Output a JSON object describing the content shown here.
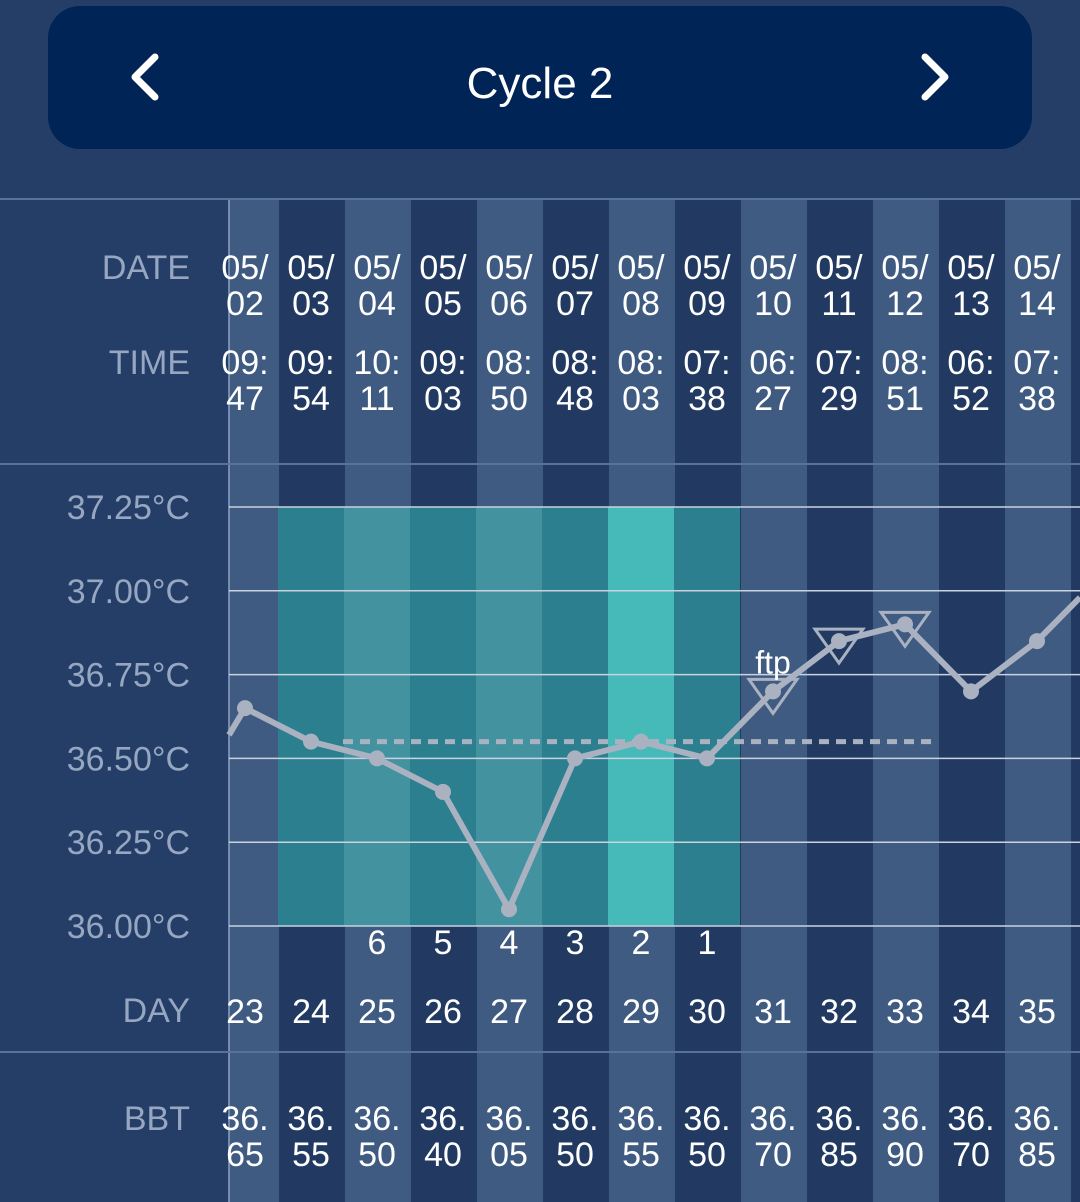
{
  "header": {
    "title": "Cycle 2",
    "prev_icon": "chevron-left-icon",
    "next_icon": "chevron-right-icon"
  },
  "rows": {
    "date_label": "DATE",
    "time_label": "TIME",
    "day_label": "DAY",
    "bbt_label": "BBT"
  },
  "colors": {
    "background": "#243e67",
    "header": "#012456",
    "col_light": "#3f5b81",
    "col_dark": "#223a62",
    "fertile_dark": "#2c7f8e",
    "fertile_light": "#43929f",
    "fertile_peak": "#46bab8",
    "line": "#aab2c2",
    "coverline": "#aab2c2",
    "marker": "#aab2c2"
  },
  "chart_data": {
    "type": "line",
    "ylim": [
      36.0,
      37.25
    ],
    "yticks": [
      "37.25°C",
      "37.00°C",
      "36.75°C",
      "36.50°C",
      "36.25°C",
      "36.00°C"
    ],
    "ytick_values": [
      37.25,
      37.0,
      36.75,
      36.5,
      36.25,
      36.0
    ],
    "columns": [
      {
        "date": [
          "05/",
          "02"
        ],
        "time": [
          "09:",
          "47"
        ],
        "day": "23",
        "bbt": [
          "36.",
          "65"
        ],
        "value": 36.65,
        "count": "",
        "band": "",
        "marker": false
      },
      {
        "date": [
          "05/",
          "03"
        ],
        "time": [
          "09:",
          "54"
        ],
        "day": "24",
        "bbt": [
          "36.",
          "55"
        ],
        "value": 36.55,
        "count": "",
        "band": "dark",
        "marker": false
      },
      {
        "date": [
          "05/",
          "04"
        ],
        "time": [
          "10:",
          "11"
        ],
        "day": "25",
        "bbt": [
          "36.",
          "50"
        ],
        "value": 36.5,
        "count": "6",
        "band": "light",
        "marker": false
      },
      {
        "date": [
          "05/",
          "05"
        ],
        "time": [
          "09:",
          "03"
        ],
        "day": "26",
        "bbt": [
          "36.",
          "40"
        ],
        "value": 36.4,
        "count": "5",
        "band": "dark",
        "marker": false
      },
      {
        "date": [
          "05/",
          "06"
        ],
        "time": [
          "08:",
          "50"
        ],
        "day": "27",
        "bbt": [
          "36.",
          "05"
        ],
        "value": 36.05,
        "count": "4",
        "band": "light",
        "marker": false
      },
      {
        "date": [
          "05/",
          "07"
        ],
        "time": [
          "08:",
          "48"
        ],
        "day": "28",
        "bbt": [
          "36.",
          "50"
        ],
        "value": 36.5,
        "count": "3",
        "band": "dark",
        "marker": false
      },
      {
        "date": [
          "05/",
          "08"
        ],
        "time": [
          "08:",
          "03"
        ],
        "day": "29",
        "bbt": [
          "36.",
          "55"
        ],
        "value": 36.55,
        "count": "2",
        "band": "peak",
        "marker": false
      },
      {
        "date": [
          "05/",
          "09"
        ],
        "time": [
          "07:",
          "38"
        ],
        "day": "30",
        "bbt": [
          "36.",
          "50"
        ],
        "value": 36.5,
        "count": "1",
        "band": "dark",
        "marker": false
      },
      {
        "date": [
          "05/",
          "10"
        ],
        "time": [
          "06:",
          "27"
        ],
        "day": "31",
        "bbt": [
          "36.",
          "70"
        ],
        "value": 36.7,
        "count": "",
        "band": "",
        "marker": true
      },
      {
        "date": [
          "05/",
          "11"
        ],
        "time": [
          "07:",
          "29"
        ],
        "day": "32",
        "bbt": [
          "36.",
          "85"
        ],
        "value": 36.85,
        "count": "",
        "band": "",
        "marker": true
      },
      {
        "date": [
          "05/",
          "12"
        ],
        "time": [
          "08:",
          "51"
        ],
        "day": "33",
        "bbt": [
          "36.",
          "90"
        ],
        "value": 36.9,
        "count": "",
        "band": "",
        "marker": true
      },
      {
        "date": [
          "05/",
          "13"
        ],
        "time": [
          "06:",
          "52"
        ],
        "day": "34",
        "bbt": [
          "36.",
          "70"
        ],
        "value": 36.7,
        "count": "",
        "band": "",
        "marker": false
      },
      {
        "date": [
          "05/",
          "14"
        ],
        "time": [
          "07:",
          "38"
        ],
        "day": "35",
        "bbt": [
          "36.",
          "85"
        ],
        "value": 36.85,
        "count": "",
        "band": "",
        "marker": false
      }
    ],
    "line_start_value": 36.57,
    "line_end_value": 36.98,
    "coverline": {
      "value": 36.55,
      "from_day": "24",
      "to_day": "33"
    },
    "annotation": {
      "text": "ftp",
      "day": "31"
    }
  }
}
